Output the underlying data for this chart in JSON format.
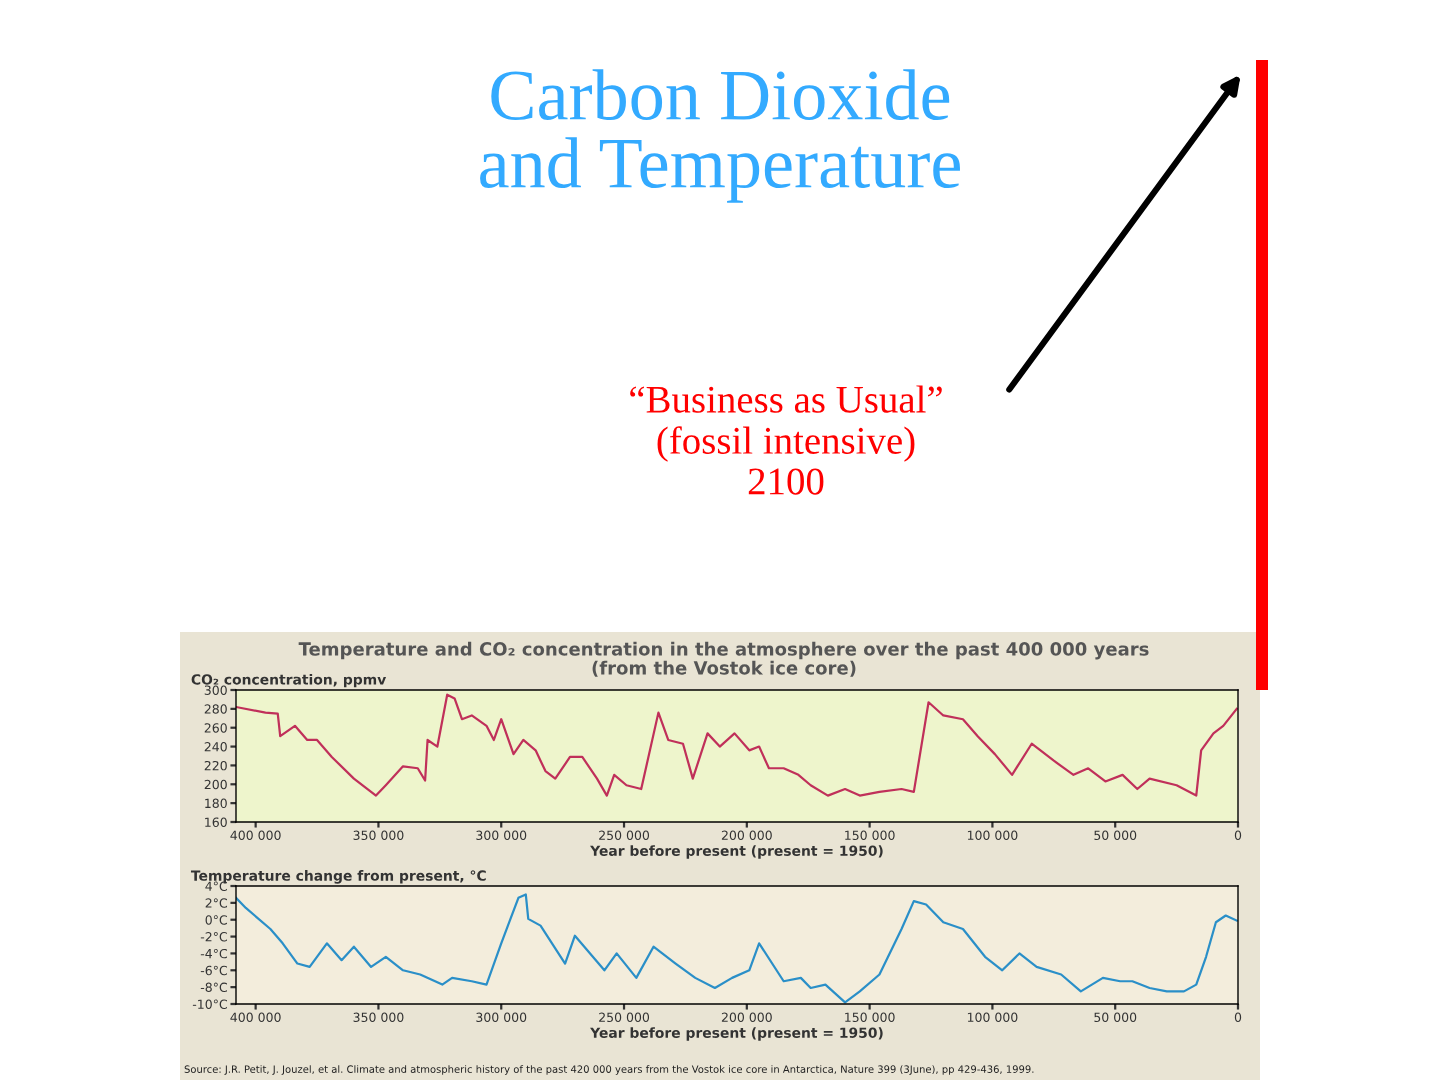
{
  "chart_data": [
    {
      "type": "line",
      "title": "Carbon Dioxide and Temperature",
      "subtitle": "Temperature and CO₂ concentration in the atmosphere over the past 400 000 years\n(from the Vostok ice core)",
      "ylabel": "CO₂ concentration, ppmv",
      "xlabel": "Year before present (present = 1950)",
      "annotations": [
        "“Business as Usual”\n(fossil intensive)\n2100"
      ],
      "series": [
        {
          "color": "#c0305a",
          "x": [
            408000,
            396000,
            391000,
            390000,
            384000,
            379000,
            375000,
            369000,
            360000,
            351000,
            347000,
            340000,
            334000,
            331000,
            330000,
            326000,
            322000,
            319000,
            316000,
            312000,
            306000,
            303000,
            300000,
            295000,
            291000,
            286000,
            282000,
            278000,
            272000,
            267000,
            261000,
            257000,
            254000,
            249000,
            243000,
            236000,
            232000,
            226000,
            222000,
            216000,
            211000,
            205000,
            199000,
            195000,
            191000,
            185000,
            179000,
            174000,
            167000,
            160000,
            154000,
            146000,
            137000,
            132000,
            126000,
            120000,
            112000,
            106000,
            99000,
            92000,
            84000,
            75000,
            67000,
            61000,
            54000,
            47000,
            41000,
            36000,
            25000,
            17000,
            15000,
            10000,
            6000,
            500
          ],
          "values": [
            282,
            276,
            275,
            251,
            262,
            247,
            247,
            229,
            206,
            188,
            199,
            219,
            217,
            204,
            247,
            240,
            295,
            291,
            269,
            273,
            262,
            247,
            269,
            232,
            247,
            236,
            214,
            206,
            229,
            229,
            206,
            188,
            210,
            199,
            195,
            276,
            247,
            243,
            206,
            254,
            240,
            254,
            236,
            240,
            217,
            217,
            210,
            199,
            188,
            195,
            188,
            192,
            195,
            192,
            287,
            273,
            269,
            251,
            232,
            210,
            243,
            225,
            210,
            217,
            203,
            210,
            195,
            206,
            199,
            188,
            236,
            254,
            262,
            280
          ]
        }
      ],
      "xlim": [
        408000,
        0
      ],
      "xticks": [
        {
          "value": 400000,
          "label": "400 000"
        },
        {
          "value": 350000,
          "label": "350 000"
        },
        {
          "value": 300000,
          "label": "300 000"
        },
        {
          "value": 250000,
          "label": "250 000"
        },
        {
          "value": 200000,
          "label": "200 000"
        },
        {
          "value": 150000,
          "label": "150 000"
        },
        {
          "value": 100000,
          "label": "100 000"
        },
        {
          "value": 50000,
          "label": "50 000"
        },
        0
      ],
      "ylim": [
        160,
        300
      ],
      "yticks": [
        160,
        180,
        200,
        220,
        240,
        260,
        280,
        300
      ]
    },
    {
      "type": "line",
      "ylabel": "Temperature change from present, °C",
      "xlabel": "Year before present (present = 1950)",
      "annotations": [
        "Source: J.R. Petit, J. Jouzel, et al. Climate and atmospheric history of the past 420 000 years from the Vostok ice core in Antarctica, Nature 399 (3June), pp 429-436, 1999."
      ],
      "series": [
        {
          "color": "#2a8fc8",
          "x": [
            408000,
            404000,
            394000,
            389000,
            383000,
            378000,
            371000,
            365000,
            360000,
            353000,
            347000,
            340000,
            333000,
            324000,
            320000,
            312000,
            306000,
            300000,
            293000,
            290000,
            289000,
            284000,
            274000,
            270000,
            258000,
            253000,
            245000,
            238000,
            229000,
            221000,
            213000,
            206000,
            199000,
            195000,
            185000,
            178000,
            174000,
            168000,
            160000,
            154000,
            146000,
            137000,
            132000,
            127000,
            120000,
            112000,
            103000,
            96000,
            89000,
            82000,
            72000,
            64000,
            55000,
            48000,
            43000,
            36000,
            29000,
            22000,
            17000,
            13000,
            9000,
            5000,
            500
          ],
          "values": [
            2.6,
            1.4,
            -1.1,
            -2.8,
            -5.2,
            -5.6,
            -2.8,
            -4.8,
            -3.2,
            -5.6,
            -4.4,
            -6.0,
            -6.5,
            -7.7,
            -6.9,
            -7.3,
            -7.7,
            -2.8,
            2.6,
            3.0,
            0.1,
            -0.7,
            -5.2,
            -1.9,
            -6.0,
            -4.0,
            -6.9,
            -3.2,
            -5.2,
            -6.9,
            -8.1,
            -6.9,
            -6.0,
            -2.8,
            -7.3,
            -6.9,
            -8.1,
            -7.7,
            -9.8,
            -8.5,
            -6.5,
            -1.1,
            2.2,
            1.8,
            -0.3,
            -1.1,
            -4.4,
            -6.0,
            -4.0,
            -5.6,
            -6.5,
            -8.5,
            -6.9,
            -7.3,
            -7.3,
            -8.1,
            -8.5,
            -8.5,
            -7.7,
            -4.4,
            -0.3,
            0.5,
            -0.1
          ]
        }
      ],
      "xlim": [
        408000,
        0
      ],
      "xticks": [
        {
          "value": 400000,
          "label": "400 000"
        },
        {
          "value": 350000,
          "label": "350 000"
        },
        {
          "value": 300000,
          "label": "300 000"
        },
        {
          "value": 250000,
          "label": "250 000"
        },
        {
          "value": 200000,
          "label": "200 000"
        },
        {
          "value": 150000,
          "label": "150 000"
        },
        {
          "value": 100000,
          "label": "100 000"
        },
        {
          "value": 50000,
          "label": "50 000"
        },
        0
      ],
      "ylim": [
        -10,
        4
      ],
      "yticks": [
        {
          "value": 4,
          "label": "4°C"
        },
        {
          "value": 2,
          "label": "2°C"
        },
        {
          "value": 0,
          "label": "0°C"
        },
        {
          "value": -2,
          "label": "-2°C"
        },
        {
          "value": -4,
          "label": "-4°C"
        },
        {
          "value": -6,
          "label": "-6°C"
        },
        {
          "value": -8,
          "label": "-8°C"
        },
        {
          "value": -10,
          "label": "-10°C"
        }
      ]
    }
  ]
}
